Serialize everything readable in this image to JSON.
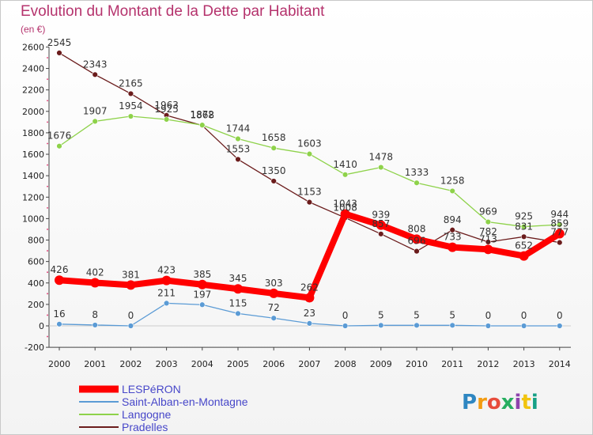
{
  "header": {
    "title": "Evolution du Montant de la Dette par Habitant",
    "unit": "(en €)"
  },
  "logo": {
    "text": "Proxiti"
  },
  "chart_data": {
    "type": "line",
    "title": "Evolution du Montant de la Dette par Habitant",
    "ylabel": "(en €)",
    "xlabel": "",
    "ylim": [
      -200,
      2600
    ],
    "yticks": [
      -200,
      0,
      200,
      400,
      600,
      800,
      1000,
      1200,
      1400,
      1600,
      1800,
      2000,
      2200,
      2400,
      2600
    ],
    "grid": false,
    "legend": "bottom-left",
    "x": [
      "2000",
      "2001",
      "2002",
      "2003",
      "2004",
      "2005",
      "2006",
      "2007",
      "2008",
      "2009",
      "2010",
      "2011",
      "2012",
      "2013",
      "2014"
    ],
    "series": [
      {
        "name": "Pradelles",
        "color": "#6b1c1c",
        "values": [
          2545,
          2343,
          2165,
          1963,
          1868,
          1553,
          1350,
          1153,
          1008,
          857,
          696,
          894,
          782,
          831,
          777
        ]
      },
      {
        "name": "Langogne",
        "color": "#8ed24a",
        "values": [
          1676,
          1907,
          1954,
          1925,
          1872,
          1744,
          1658,
          1603,
          1410,
          1478,
          1333,
          1258,
          969,
          925,
          944
        ]
      },
      {
        "name": "Saint-Alban-en-Montagne",
        "color": "#5b9bd5",
        "values": [
          16,
          8,
          0,
          211,
          197,
          115,
          72,
          23,
          0,
          5,
          5,
          5,
          0,
          0,
          0
        ]
      },
      {
        "name": "LESPéRON",
        "color": "#ff0000",
        "values": [
          426,
          402,
          381,
          423,
          385,
          345,
          303,
          262,
          1043,
          939,
          808,
          733,
          713,
          652,
          859
        ]
      }
    ],
    "labels": {
      "Pradelles": [
        "2545",
        "2343",
        "2165",
        "1963",
        "1868",
        "1553",
        "1350",
        "1153",
        "1008",
        "857",
        "696",
        "894",
        "782",
        "831",
        "777"
      ],
      "Langogne": [
        "1676",
        "1907",
        "1954",
        "1925",
        "1872",
        "1744",
        "1658",
        "1603",
        "1410",
        "1478",
        "1333",
        "1258",
        "969",
        "925",
        "944"
      ],
      "Saint-Alban-en-Montagne": [
        "16",
        "8",
        "0",
        "211",
        "197",
        "115",
        "72",
        "23",
        "0",
        "5",
        "5",
        "5",
        "0",
        "0",
        "0"
      ],
      "LESPéRON": [
        "426",
        "402",
        "381",
        "423",
        "385",
        "345",
        "303",
        "262",
        "1043",
        "939",
        "808",
        "733",
        "713",
        "652",
        "859"
      ]
    },
    "legend_order": [
      "LESPéRON",
      "Saint-Alban-en-Montagne",
      "Langogne",
      "Pradelles"
    ]
  }
}
